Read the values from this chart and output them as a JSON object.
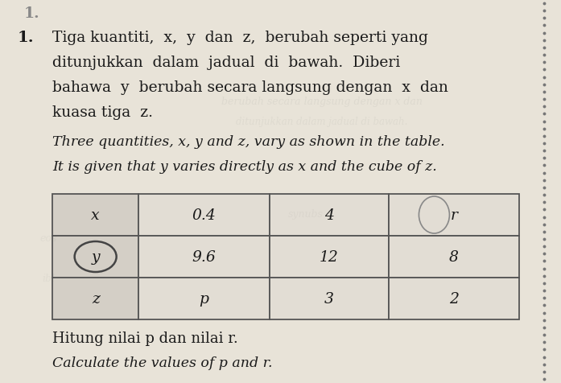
{
  "bg_color": "#e8e3d8",
  "text_color": "#1a1a1a",
  "number_label": "1.",
  "malay_line1": "Tiga kuantiti,  x,  y  dan  z,  berubah seperti yang",
  "malay_line2": "ditunjukkan  dalam  jadual  di  bawah.  Diberi",
  "malay_line3": "bahawa  y  berubah secara langsung dengan  x  dan",
  "malay_line4": "kuasa tiga  z.",
  "eng_line1": "Three quantities, x, y and z, vary as shown in the table.",
  "eng_line2": "It is given that y varies directly as x and the cube of z.",
  "table_row0": [
    "x",
    "0.4",
    "4",
    "r"
  ],
  "table_row1": [
    "y",
    "9.6",
    "12",
    "8"
  ],
  "table_row2": [
    "z",
    "p",
    "3",
    "2"
  ],
  "footer_malay": "Hitung nilai p dan nilai r.",
  "footer_english": "Calculate the values of p and r.",
  "cell_bg_label": "#d4cfc6",
  "cell_bg_data": "#e2ddd4",
  "dot_color": "#777777",
  "table_border": "#555555"
}
